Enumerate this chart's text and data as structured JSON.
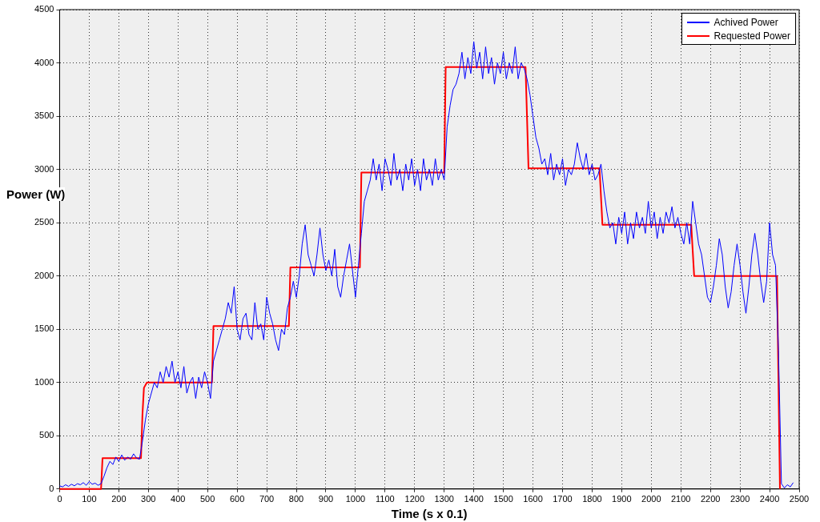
{
  "chart_data": {
    "type": "line",
    "xlabel": "Time (s x 0.1)",
    "ylabel": "Power (W)",
    "xlim": [
      0,
      2500
    ],
    "xticks": [
      0,
      100,
      200,
      300,
      400,
      500,
      600,
      700,
      800,
      900,
      1000,
      1100,
      1200,
      1300,
      1400,
      1500,
      1600,
      1700,
      1800,
      1900,
      2000,
      2100,
      2200,
      2300,
      2400,
      2500
    ],
    "ylim": [
      0,
      4500
    ],
    "yticks": [
      0,
      500,
      1000,
      1500,
      2000,
      2500,
      3000,
      3500,
      4000,
      4500
    ],
    "grid": true,
    "legend": "top right",
    "marker": "none",
    "line_style": "solid",
    "series": [
      {
        "name": "Achived Power",
        "color": "#0000ff",
        "x": [
          0,
          10,
          20,
          30,
          40,
          50,
          60,
          70,
          80,
          90,
          100,
          110,
          120,
          130,
          140,
          150,
          160,
          170,
          180,
          190,
          200,
          210,
          220,
          230,
          240,
          250,
          260,
          270,
          280,
          290,
          300,
          310,
          320,
          330,
          340,
          350,
          360,
          370,
          380,
          390,
          400,
          410,
          420,
          430,
          440,
          450,
          460,
          470,
          480,
          490,
          500,
          510,
          520,
          530,
          540,
          550,
          560,
          570,
          580,
          590,
          600,
          610,
          620,
          630,
          640,
          650,
          660,
          670,
          680,
          690,
          700,
          710,
          720,
          730,
          740,
          750,
          760,
          770,
          780,
          790,
          800,
          810,
          820,
          830,
          840,
          850,
          860,
          870,
          880,
          890,
          900,
          910,
          920,
          930,
          940,
          950,
          960,
          970,
          980,
          990,
          1000,
          1010,
          1020,
          1030,
          1040,
          1050,
          1060,
          1070,
          1080,
          1090,
          1100,
          1110,
          1120,
          1130,
          1140,
          1150,
          1160,
          1170,
          1180,
          1190,
          1200,
          1210,
          1220,
          1230,
          1240,
          1250,
          1260,
          1270,
          1280,
          1290,
          1300,
          1310,
          1320,
          1330,
          1340,
          1350,
          1360,
          1370,
          1380,
          1390,
          1400,
          1410,
          1420,
          1430,
          1440,
          1450,
          1460,
          1470,
          1480,
          1490,
          1500,
          1510,
          1520,
          1530,
          1540,
          1550,
          1560,
          1570,
          1580,
          1590,
          1600,
          1610,
          1620,
          1630,
          1640,
          1650,
          1660,
          1670,
          1680,
          1690,
          1700,
          1710,
          1720,
          1730,
          1740,
          1750,
          1760,
          1770,
          1780,
          1790,
          1800,
          1810,
          1820,
          1830,
          1840,
          1850,
          1860,
          1870,
          1880,
          1890,
          1900,
          1910,
          1920,
          1930,
          1940,
          1950,
          1960,
          1970,
          1980,
          1990,
          2000,
          2010,
          2020,
          2030,
          2040,
          2050,
          2060,
          2070,
          2080,
          2090,
          2100,
          2110,
          2120,
          2130,
          2140,
          2150,
          2160,
          2170,
          2180,
          2190,
          2200,
          2210,
          2220,
          2230,
          2240,
          2250,
          2260,
          2270,
          2280,
          2290,
          2300,
          2310,
          2320,
          2330,
          2340,
          2350,
          2360,
          2370,
          2380,
          2390,
          2400,
          2410,
          2420,
          2430,
          2440,
          2450,
          2460,
          2470,
          2480
        ],
        "values": [
          30,
          20,
          40,
          25,
          45,
          30,
          50,
          40,
          60,
          35,
          70,
          45,
          55,
          35,
          50,
          120,
          200,
          260,
          230,
          300,
          260,
          320,
          270,
          300,
          280,
          330,
          290,
          280,
          450,
          650,
          800,
          900,
          1000,
          950,
          1100,
          1000,
          1150,
          1050,
          1200,
          1000,
          1100,
          950,
          1150,
          900,
          1000,
          1050,
          850,
          1050,
          950,
          1100,
          1000,
          850,
          1200,
          1300,
          1400,
          1500,
          1600,
          1750,
          1650,
          1900,
          1500,
          1400,
          1600,
          1650,
          1450,
          1400,
          1750,
          1500,
          1550,
          1400,
          1800,
          1650,
          1550,
          1400,
          1300,
          1500,
          1450,
          1700,
          1800,
          1950,
          1800,
          2000,
          2300,
          2480,
          2200,
          2100,
          2000,
          2200,
          2450,
          2200,
          2050,
          2150,
          2000,
          2250,
          1900,
          1800,
          2000,
          2150,
          2300,
          2050,
          1800,
          2100,
          2400,
          2700,
          2800,
          2900,
          3100,
          2900,
          3050,
          2800,
          3100,
          3000,
          2850,
          3150,
          2900,
          3000,
          2800,
          3050,
          2900,
          3100,
          2850,
          3000,
          2800,
          3100,
          2900,
          3000,
          2850,
          3100,
          2900,
          3000,
          2900,
          3400,
          3600,
          3750,
          3800,
          3900,
          4100,
          3850,
          4050,
          3900,
          4200,
          3950,
          4100,
          3850,
          4150,
          3900,
          4050,
          3800,
          4000,
          3900,
          4100,
          3850,
          4000,
          3900,
          4150,
          3850,
          4000,
          3950,
          3850,
          3700,
          3500,
          3300,
          3200,
          3050,
          3100,
          2950,
          3150,
          2900,
          3050,
          2950,
          3100,
          2850,
          3000,
          2950,
          3050,
          3250,
          3100,
          3000,
          3150,
          2950,
          3050,
          2900,
          2950,
          3050,
          2800,
          2600,
          2450,
          2500,
          2300,
          2550,
          2400,
          2600,
          2300,
          2500,
          2350,
          2600,
          2450,
          2550,
          2400,
          2700,
          2450,
          2600,
          2350,
          2550,
          2400,
          2600,
          2500,
          2650,
          2450,
          2550,
          2400,
          2300,
          2500,
          2300,
          2700,
          2500,
          2300,
          2200,
          2000,
          1800,
          1750,
          1900,
          2100,
          2350,
          2200,
          1900,
          1700,
          1850,
          2100,
          2300,
          2100,
          1850,
          1650,
          1900,
          2200,
          2400,
          2200,
          1950,
          1750,
          1950,
          2500,
          2200,
          2100,
          1300,
          50,
          10,
          40,
          20,
          60
        ]
      },
      {
        "name": "Requested Power",
        "color": "#ff0000",
        "x": [
          0,
          140,
          145,
          275,
          280,
          285,
          295,
          515,
          520,
          775,
          780,
          1015,
          1020,
          1300,
          1305,
          1575,
          1585,
          1825,
          1835,
          2135,
          2145,
          2425,
          2435
        ],
        "values": [
          0,
          0,
          290,
          290,
          700,
          950,
          1000,
          1000,
          1530,
          1530,
          2080,
          2080,
          2970,
          2970,
          3960,
          3960,
          3010,
          3010,
          2480,
          2480,
          2000,
          2000,
          0
        ]
      }
    ]
  }
}
